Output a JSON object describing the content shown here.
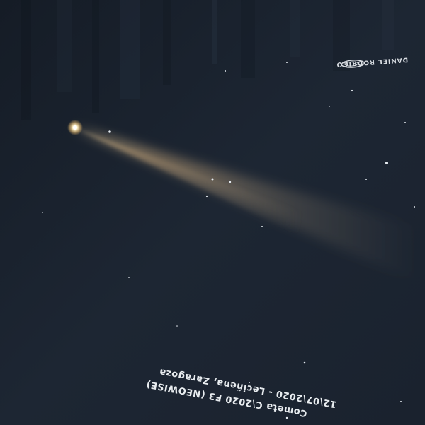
{
  "photo": {
    "subject": "comet",
    "background_color": "#1b2330",
    "tail_color": "#c9a77a",
    "nucleus_color": "#fff2c8"
  },
  "watermark": {
    "text": "DANIEL RODRIGO",
    "icon": "signature-swirl-icon"
  },
  "caption": {
    "line1": "12\\07\\2020 - Leciñena, Zaragoza",
    "line2": "Cometa C\\2020 F3 (NEOWISE)"
  }
}
